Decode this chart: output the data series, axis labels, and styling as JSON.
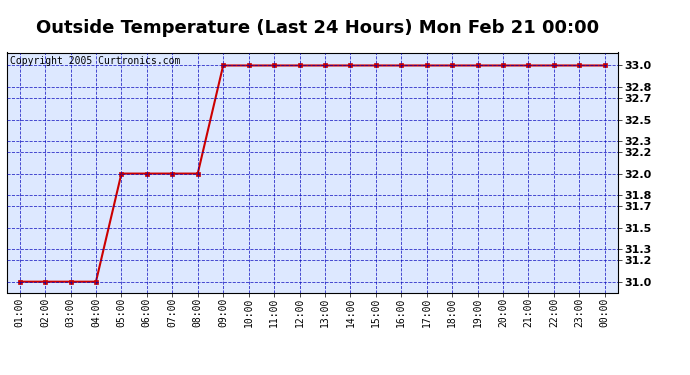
{
  "title": "Outside Temperature (Last 24 Hours) Mon Feb 21 00:00",
  "copyright": "Copyright 2005 Curtronics.com",
  "x_labels": [
    "01:00",
    "02:00",
    "03:00",
    "04:00",
    "05:00",
    "06:00",
    "07:00",
    "08:00",
    "09:00",
    "10:00",
    "11:00",
    "12:00",
    "13:00",
    "14:00",
    "15:00",
    "16:00",
    "17:00",
    "18:00",
    "19:00",
    "20:00",
    "21:00",
    "22:00",
    "23:00",
    "00:00"
  ],
  "x_values": [
    1,
    2,
    3,
    4,
    5,
    6,
    7,
    8,
    9,
    10,
    11,
    12,
    13,
    14,
    15,
    16,
    17,
    18,
    19,
    20,
    21,
    22,
    23,
    24
  ],
  "y_values": [
    31.0,
    31.0,
    31.0,
    31.0,
    32.0,
    32.0,
    32.0,
    32.0,
    33.0,
    33.0,
    33.0,
    33.0,
    33.0,
    33.0,
    33.0,
    33.0,
    33.0,
    33.0,
    33.0,
    33.0,
    33.0,
    33.0,
    33.0,
    33.0
  ],
  "ylim": [
    30.9,
    33.12
  ],
  "yticks": [
    31.0,
    31.2,
    31.3,
    31.5,
    31.7,
    31.8,
    32.0,
    32.2,
    32.3,
    32.5,
    32.7,
    32.8,
    33.0
  ],
  "line_color": "#cc0000",
  "marker": "s",
  "marker_size": 2.5,
  "grid_color": "#0000bb",
  "background_color": "#ffffff",
  "plot_bg_color": "#dde8ff",
  "title_fontsize": 13,
  "copyright_fontsize": 7
}
